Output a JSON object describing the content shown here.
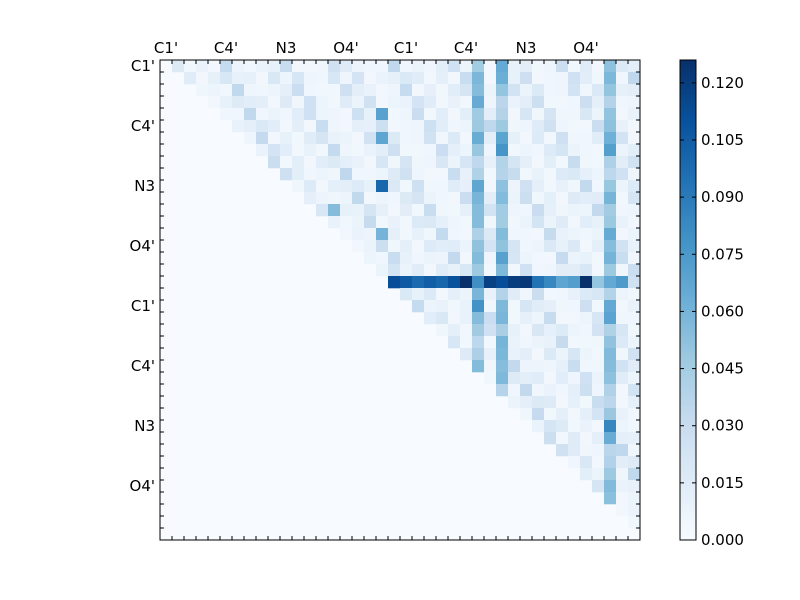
{
  "chart_data": {
    "type": "heatmap",
    "title": "",
    "xlabel": "",
    "ylabel": "",
    "n": 40,
    "tick_step": 5,
    "x_tick_labels": [
      "C1'",
      "C4'",
      "N3",
      "O4'",
      "C1'",
      "C4'",
      "N3",
      "O4'"
    ],
    "y_tick_labels": [
      "C1'",
      "C4'",
      "N3",
      "O4'",
      "C1'",
      "C4'",
      "N3",
      "O4'"
    ],
    "value_range": [
      0.0,
      0.126
    ],
    "colormap": "Blues",
    "colorbar": {
      "ticks": [
        0.0,
        0.015,
        0.03,
        0.045,
        0.06,
        0.075,
        0.09,
        0.105,
        0.12
      ],
      "labels": [
        "0.000",
        "0.015",
        "0.030",
        "0.045",
        "0.060",
        "0.075",
        "0.090",
        "0.105",
        "0.120"
      ]
    },
    "strong_row": 18,
    "strong_row_values": [
      0.112,
      0.106,
      0.098,
      0.104,
      0.1,
      0.11,
      0.126,
      0.08,
      0.118,
      0.112,
      0.12,
      0.122,
      0.094,
      0.084,
      0.068,
      0.072,
      0.126,
      0.05,
      0.066,
      0.074
    ],
    "strong_columns": [
      26,
      28,
      37
    ],
    "grid": false,
    "legend": "none"
  }
}
